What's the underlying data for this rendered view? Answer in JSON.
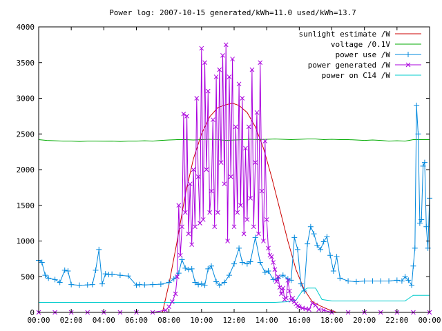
{
  "chart_data": {
    "type": "line",
    "title": "Power log: 2007-10-15 generated/kWh=11.0 used/kWh=13.7",
    "xlabel": "",
    "ylabel": "",
    "xlim": [
      0,
      24
    ],
    "ylim": [
      0,
      4000
    ],
    "x_tick_values": [
      0,
      2,
      4,
      6,
      8,
      10,
      12,
      14,
      16,
      18,
      20,
      22,
      24
    ],
    "x_tick_labels": [
      "00:00",
      "02:00",
      "04:00",
      "06:00",
      "08:00",
      "10:00",
      "12:00",
      "14:00",
      "16:00",
      "18:00",
      "20:00",
      "22:00",
      "00:00"
    ],
    "y_tick_values": [
      0,
      500,
      1000,
      1500,
      2000,
      2500,
      3000,
      3500,
      4000
    ],
    "y_tick_labels": [
      "0",
      "500",
      "1000",
      "1500",
      "2000",
      "2500",
      "3000",
      "3500",
      "4000"
    ],
    "grid": false,
    "legend_position": "top-right",
    "series": [
      {
        "name": "sunlight estimate /W",
        "color": "#cc0000",
        "marker": "none",
        "x": [
          7.6,
          8.0,
          8.5,
          9.0,
          9.5,
          10.0,
          10.5,
          11.0,
          11.5,
          11.9,
          12.3,
          12.8,
          13.3,
          13.8,
          14.3,
          14.8,
          15.3,
          15.8,
          16.3,
          16.8,
          17.3,
          17.8,
          18.3,
          24.0
        ],
        "y": [
          0,
          400,
          1000,
          1650,
          2150,
          2500,
          2740,
          2870,
          2910,
          2930,
          2900,
          2800,
          2600,
          2300,
          1900,
          1450,
          1000,
          600,
          320,
          150,
          90,
          40,
          0,
          0
        ]
      },
      {
        "name": "voltage /0.1V",
        "color": "#00aa00",
        "marker": "none",
        "x": [
          0,
          0.5,
          1,
          1.5,
          2,
          2.5,
          3,
          3.5,
          4,
          4.5,
          5,
          5.5,
          6,
          6.5,
          7,
          7.5,
          8,
          8.5,
          9,
          9.5,
          10,
          10.5,
          11,
          11.5,
          12,
          12.5,
          13,
          13.5,
          14,
          14.5,
          15,
          15.5,
          16,
          16.5,
          17,
          17.5,
          18,
          18.5,
          19,
          19.5,
          20,
          20.5,
          21,
          21.5,
          22,
          22.5,
          23,
          23.5,
          24
        ],
        "y": [
          2420,
          2410,
          2405,
          2400,
          2400,
          2395,
          2400,
          2400,
          2398,
          2400,
          2395,
          2400,
          2400,
          2405,
          2400,
          2410,
          2415,
          2420,
          2420,
          2415,
          2420,
          2425,
          2420,
          2410,
          2415,
          2420,
          2425,
          2420,
          2425,
          2430,
          2425,
          2420,
          2425,
          2430,
          2430,
          2420,
          2425,
          2420,
          2420,
          2415,
          2410,
          2415,
          2410,
          2400,
          2405,
          2400,
          2420,
          2420,
          2420
        ]
      },
      {
        "name": "power use /W",
        "color": "#0088dd",
        "marker": "plus",
        "x": [
          0,
          0.2,
          0.4,
          0.6,
          1.0,
          1.3,
          1.6,
          1.8,
          2.0,
          2.5,
          3.0,
          3.3,
          3.5,
          3.7,
          3.9,
          4.1,
          4.3,
          4.5,
          5.0,
          5.5,
          6.0,
          6.2,
          6.5,
          7.0,
          7.5,
          8.0,
          8.3,
          8.6,
          8.8,
          9.0,
          9.2,
          9.4,
          9.6,
          9.8,
          10.0,
          10.2,
          10.4,
          10.6,
          10.9,
          11.1,
          11.4,
          11.7,
          12.0,
          12.3,
          12.5,
          12.8,
          13.0,
          13.3,
          13.6,
          13.9,
          14.1,
          14.4,
          14.7,
          15.0,
          15.3,
          15.5,
          15.7,
          15.9,
          16.1,
          16.3,
          16.5,
          16.7,
          16.9,
          17.1,
          17.3,
          17.5,
          17.7,
          17.9,
          18.1,
          18.3,
          18.5,
          19.0,
          19.5,
          20.0,
          20.5,
          21.0,
          21.5,
          22.0,
          22.3,
          22.5,
          22.7,
          22.9,
          23.0,
          23.1,
          23.2,
          23.3,
          23.4,
          23.5,
          23.6,
          23.7,
          23.8,
          23.9,
          24.0
        ],
        "y": [
          730,
          700,
          520,
          480,
          460,
          420,
          590,
          580,
          390,
          380,
          385,
          390,
          590,
          880,
          400,
          540,
          530,
          535,
          520,
          510,
          380,
          390,
          385,
          390,
          395,
          420,
          470,
          550,
          740,
          620,
          600,
          610,
          420,
          390,
          400,
          380,
          610,
          650,
          430,
          380,
          420,
          520,
          680,
          900,
          700,
          680,
          710,
          1050,
          700,
          560,
          580,
          460,
          480,
          520,
          470,
          450,
          1050,
          880,
          400,
          300,
          960,
          1200,
          1100,
          940,
          880,
          990,
          1060,
          800,
          580,
          780,
          480,
          440,
          430,
          440,
          440,
          440,
          440,
          450,
          440,
          500,
          450,
          380,
          650,
          900,
          2900,
          2500,
          1250,
          1300,
          2050,
          2100,
          1200,
          900,
          1600
        ]
      },
      {
        "name": "power generated /W",
        "color": "#aa00dd",
        "marker": "cross",
        "x": [
          0,
          1,
          2,
          3,
          4,
          5,
          6,
          7,
          7.8,
          8.0,
          8.2,
          8.4,
          8.5,
          8.6,
          8.7,
          8.8,
          8.9,
          9.0,
          9.1,
          9.2,
          9.3,
          9.4,
          9.5,
          9.6,
          9.7,
          9.8,
          9.9,
          10.0,
          10.1,
          10.2,
          10.3,
          10.4,
          10.5,
          10.6,
          10.7,
          10.8,
          10.9,
          11.0,
          11.1,
          11.2,
          11.3,
          11.4,
          11.5,
          11.6,
          11.7,
          11.8,
          11.9,
          12.0,
          12.1,
          12.2,
          12.3,
          12.4,
          12.5,
          12.6,
          12.7,
          12.8,
          12.9,
          13.0,
          13.1,
          13.2,
          13.3,
          13.4,
          13.5,
          13.6,
          13.7,
          13.8,
          13.9,
          14.0,
          14.1,
          14.2,
          14.3,
          14.4,
          14.5,
          14.6,
          14.7,
          14.8,
          14.9,
          15.0,
          15.1,
          15.2,
          15.3,
          15.4,
          15.5,
          15.6,
          15.7,
          15.8,
          15.9,
          16.0,
          16.2,
          16.4,
          16.6,
          16.8,
          17.0,
          17.2,
          17.5,
          18.0,
          19,
          20,
          21,
          22,
          23,
          24
        ],
        "y": [
          0,
          0,
          0,
          0,
          0,
          0,
          0,
          0,
          30,
          80,
          150,
          260,
          500,
          1500,
          800,
          1200,
          2780,
          1400,
          2750,
          1100,
          1800,
          950,
          2000,
          1200,
          3000,
          1900,
          1250,
          3700,
          1300,
          3500,
          2000,
          3100,
          1400,
          1700,
          2700,
          1200,
          3300,
          1400,
          3400,
          2100,
          3600,
          1800,
          3750,
          1000,
          3300,
          1900,
          3550,
          1200,
          2600,
          1400,
          3200,
          1500,
          3000,
          1100,
          2300,
          1300,
          2600,
          1600,
          3400,
          1200,
          2100,
          2800,
          1100,
          3500,
          1700,
          1000,
          2400,
          1300,
          900,
          800,
          780,
          700,
          600,
          430,
          500,
          350,
          260,
          340,
          180,
          200,
          450,
          300,
          170,
          200,
          150,
          120,
          90,
          80,
          60,
          50,
          40,
          130,
          100,
          40,
          30,
          0,
          0,
          0,
          0,
          0,
          0,
          0
        ]
      },
      {
        "name": "power on C14 /W",
        "color": "#00cccc",
        "marker": "none",
        "x": [
          0,
          6,
          7.5,
          8.0,
          12,
          14.5,
          15.3,
          15.5,
          15.8,
          16.0,
          16.2,
          16.5,
          17.0,
          17.4,
          18.0,
          20,
          22.5,
          23.0,
          24.0
        ],
        "y": [
          140,
          140,
          140,
          140,
          140,
          140,
          150,
          160,
          170,
          240,
          300,
          340,
          340,
          180,
          160,
          160,
          160,
          240,
          240
        ]
      }
    ]
  }
}
